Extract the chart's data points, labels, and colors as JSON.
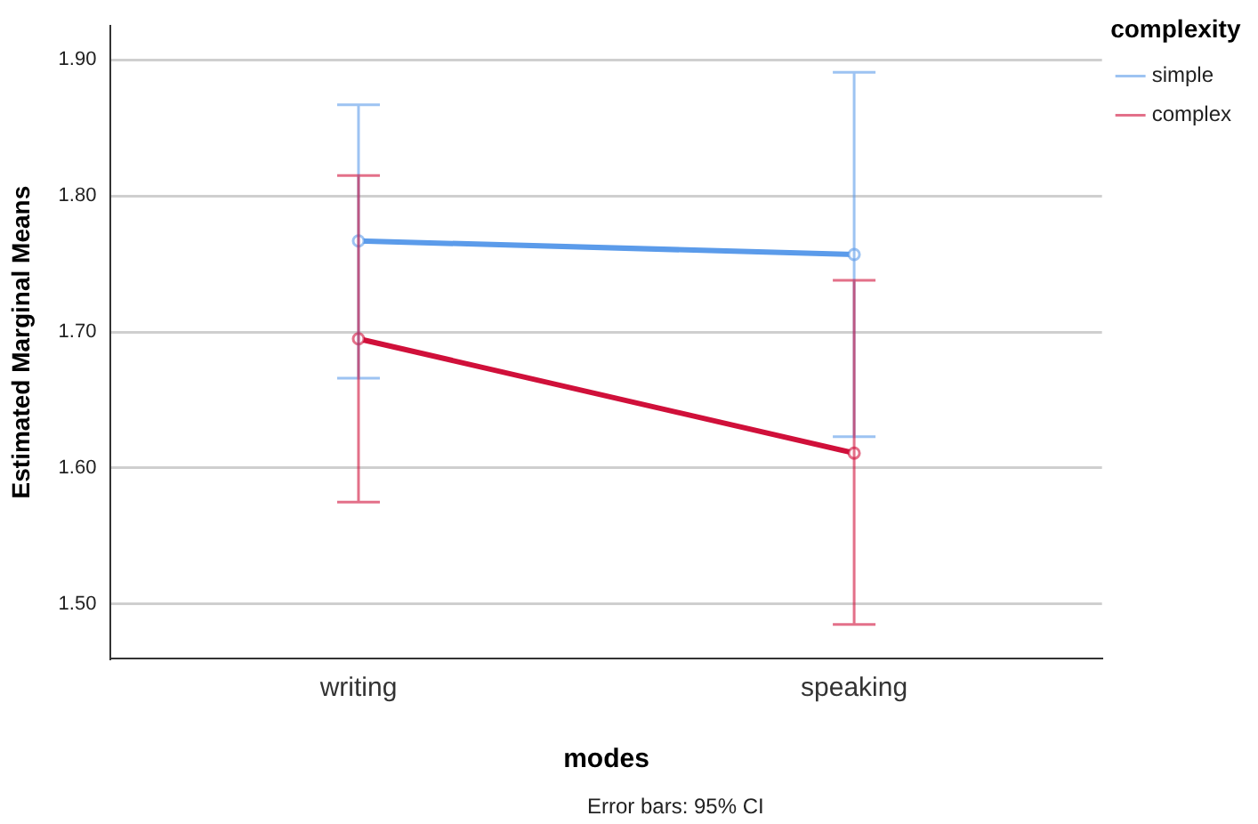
{
  "chart_data": {
    "type": "line",
    "xlabel": "modes",
    "ylabel": "Estimated Marginal Means",
    "legend_title": "complexity",
    "categories": [
      "writing",
      "speaking"
    ],
    "series": [
      {
        "name": "simple",
        "color": "#5b9bea",
        "values": [
          1.767,
          1.757
        ],
        "errors": [
          [
            1.666,
            1.867
          ],
          [
            1.623,
            1.891
          ]
        ]
      },
      {
        "name": "complex",
        "color": "#d0103a",
        "values": [
          1.695,
          1.611
        ],
        "errors": [
          [
            1.575,
            1.815
          ],
          [
            1.485,
            1.738
          ]
        ]
      }
    ],
    "ylim": [
      1.46,
      1.925
    ],
    "yticks": [
      {
        "value": 1.5,
        "label": "1.50"
      },
      {
        "value": 1.6,
        "label": "1.60"
      },
      {
        "value": 1.7,
        "label": "1.70"
      },
      {
        "value": 1.8,
        "label": "1.80"
      },
      {
        "value": 1.9,
        "label": "1.90"
      }
    ],
    "grid": "y",
    "legend": "top right",
    "marker": "circle",
    "line_style": "solid",
    "annotations": [
      "Error bars: 95% CI"
    ]
  }
}
